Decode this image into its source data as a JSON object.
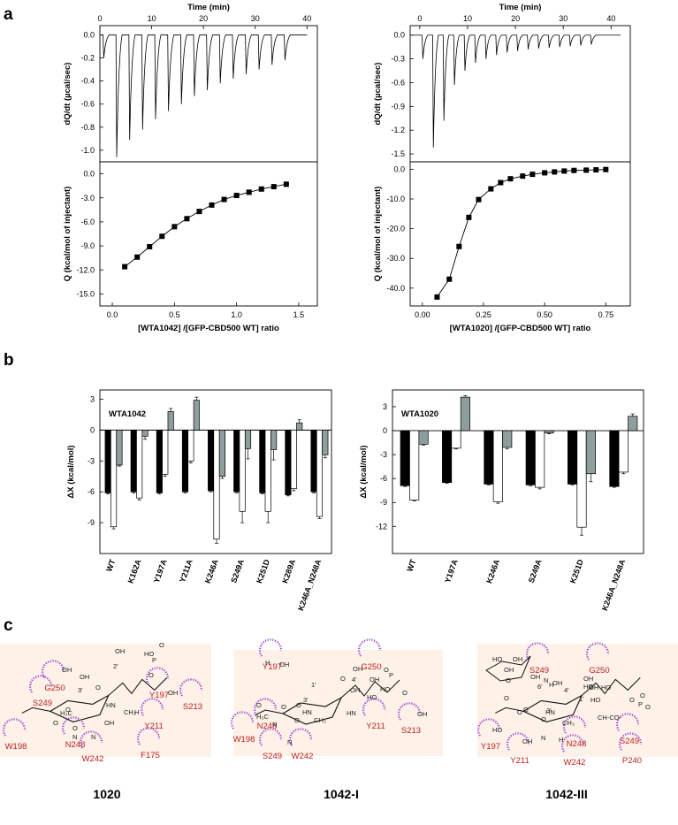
{
  "panels": {
    "a": "a",
    "b": "b",
    "c": "c"
  },
  "chart_data": [
    {
      "type": "line",
      "id": "a-left-top",
      "title": "",
      "x2label": "Time (min)",
      "ylabel": "dQ/dt  (µcal/sec)",
      "xlim": [
        0,
        42
      ],
      "ylim": [
        -1.1,
        0.08
      ],
      "xticks": [
        0,
        10,
        20,
        30,
        40
      ],
      "yticks": [
        0.0,
        -0.2,
        -0.4,
        -0.6,
        -0.8,
        -1.0
      ],
      "ytick_labels": [
        "0.0",
        "-0.2",
        "-0.4",
        "-0.6",
        "-0.8",
        "-1.0"
      ],
      "inject_times": [
        0.6,
        3.1,
        5.6,
        8.1,
        10.6,
        13.1,
        15.6,
        18.1,
        20.6,
        23.1,
        25.6,
        28.1,
        30.6,
        33.1,
        35.6
      ],
      "peaks": [
        -0.2,
        -1.06,
        -0.91,
        -0.82,
        -0.73,
        -0.66,
        -0.6,
        -0.53,
        -0.48,
        -0.42,
        -0.38,
        -0.34,
        -0.3,
        -0.26,
        -0.22
      ]
    },
    {
      "type": "scatter",
      "id": "a-left-bottom",
      "xlabel": "[WTA1042] /[GFP-CBD500 WT] ratio",
      "ylabel": "Q (kcal/mol of injectant)",
      "xlim": [
        -0.1,
        1.65
      ],
      "ylim": [
        -16.5,
        1.5
      ],
      "xticks": [
        0.0,
        0.5,
        1.0,
        1.5
      ],
      "xtick_labels": [
        "0.0",
        "0.5",
        "1.0",
        "1.5"
      ],
      "yticks": [
        0.0,
        -3.0,
        -6.0,
        -9.0,
        -12.0,
        -15.0
      ],
      "ytick_labels": [
        "0.0",
        "-3.0",
        "-6.0",
        "-9.0",
        "-12.0",
        "-15.0"
      ],
      "x": [
        0.1,
        0.2,
        0.3,
        0.4,
        0.5,
        0.6,
        0.7,
        0.8,
        0.9,
        1.0,
        1.1,
        1.2,
        1.3,
        1.4
      ],
      "y": [
        -11.6,
        -10.4,
        -9.1,
        -7.8,
        -6.6,
        -5.6,
        -4.7,
        -3.9,
        -3.2,
        -2.7,
        -2.3,
        -1.9,
        -1.6,
        -1.3
      ]
    },
    {
      "type": "line",
      "id": "a-right-top",
      "x2label": "Time (min)",
      "ylabel": "dQ/dt  (µcal/sec)",
      "xlim": [
        -2,
        44
      ],
      "ylim": [
        -1.6,
        0.12
      ],
      "xticks": [
        0,
        10,
        20,
        30,
        40
      ],
      "yticks": [
        0.0,
        -0.3,
        -0.6,
        -0.9,
        -1.2,
        -1.5
      ],
      "ytick_labels": [
        "0.0",
        "-0.3",
        "-0.6",
        "-0.9",
        "-1.2",
        "-1.5"
      ],
      "inject_times": [
        0.5,
        2.7,
        4.9,
        7.1,
        9.3,
        11.5,
        13.7,
        15.9,
        18.1,
        20.3,
        22.5,
        24.7,
        26.9,
        29.1,
        31.3,
        33.5,
        35.7
      ],
      "peaks": [
        -0.3,
        -1.42,
        -1.08,
        -0.63,
        -0.45,
        -0.35,
        -0.3,
        -0.25,
        -0.22,
        -0.2,
        -0.18,
        -0.17,
        -0.16,
        -0.15,
        -0.14,
        -0.13,
        -0.12
      ]
    },
    {
      "type": "scatter",
      "id": "a-right-bottom",
      "xlabel": "[WTA1020] /[GFP-CBD500 WT] ratio",
      "ylabel": "Q (kcal/mol of injectant)",
      "xlim": [
        -0.05,
        0.85
      ],
      "ylim": [
        -46,
        2.5
      ],
      "xticks": [
        0.0,
        0.25,
        0.5,
        0.75
      ],
      "xtick_labels": [
        "0.00",
        "0.25",
        "0.50",
        "0.75"
      ],
      "yticks": [
        0.0,
        -10.0,
        -20.0,
        -30.0,
        -40.0
      ],
      "ytick_labels": [
        "0.0",
        "-10.0",
        "-20.0",
        "-30.0",
        "-40.0"
      ],
      "x": [
        0.06,
        0.11,
        0.15,
        0.19,
        0.23,
        0.28,
        0.32,
        0.36,
        0.41,
        0.45,
        0.5,
        0.54,
        0.58,
        0.62,
        0.67,
        0.71,
        0.75
      ],
      "y": [
        -43.0,
        -37.0,
        -26.0,
        -16.2,
        -10.2,
        -6.6,
        -4.5,
        -3.2,
        -2.3,
        -1.7,
        -1.2,
        -0.9,
        -0.6,
        -0.4,
        -0.3,
        -0.2,
        -0.1
      ]
    },
    {
      "type": "bar",
      "id": "b-left",
      "annotation": "WTA1042",
      "ylabel": "ΔX (kcal/mol)",
      "ylim": [
        -12,
        3.9
      ],
      "yticks": [
        3,
        0,
        -3,
        -6,
        -9
      ],
      "ytick_labels": [
        "3",
        "0",
        "-3",
        "-6",
        "-9"
      ],
      "categories": [
        "WT",
        "K162A",
        "Y197A",
        "Y211A",
        "K246A",
        "S249A",
        "K251D",
        "K289A",
        "K246A_N248A"
      ],
      "series": [
        {
          "color": "#000000",
          "values": [
            -6.1,
            -6.0,
            -6.1,
            -6.0,
            -5.9,
            -6.0,
            -6.1,
            -6.3,
            -6.0
          ],
          "errors": [
            0.1,
            0.1,
            0.1,
            0.1,
            0.1,
            0.1,
            0.1,
            0.1,
            0.1
          ]
        },
        {
          "color": "#ffffff",
          "values": [
            -9.4,
            -6.6,
            -4.3,
            -3.0,
            -10.6,
            -7.9,
            -7.9,
            -5.7,
            -8.4
          ],
          "errors": [
            0.2,
            0.2,
            0.2,
            0.2,
            0.4,
            1.1,
            1.1,
            0.2,
            0.2
          ]
        },
        {
          "color": "#8e9e9c",
          "values": [
            -3.4,
            -0.6,
            1.8,
            2.9,
            -4.5,
            -1.8,
            -1.9,
            0.7,
            -2.4
          ],
          "errors": [
            0.1,
            0.3,
            0.3,
            0.3,
            0.2,
            1.0,
            1.0,
            0.3,
            0.3
          ]
        }
      ]
    },
    {
      "type": "bar",
      "id": "b-right",
      "annotation": "WTA1020",
      "ylabel": "ΔX (kcal/mol)",
      "ylim": [
        -15.4,
        5.1
      ],
      "yticks": [
        3,
        0,
        -3,
        -6,
        -9,
        -12
      ],
      "ytick_labels": [
        "3",
        "0",
        "-3",
        "-6",
        "-9",
        "-12"
      ],
      "categories": [
        "WT",
        "Y197A",
        "K246A",
        "S249A",
        "K251D",
        "K246A_N248A"
      ],
      "series": [
        {
          "color": "#000000",
          "values": [
            -6.9,
            -6.5,
            -6.7,
            -6.8,
            -6.7,
            -7.0
          ],
          "errors": [
            0.1,
            0.1,
            0.1,
            0.1,
            0.1,
            0.1
          ]
        },
        {
          "color": "#ffffff",
          "values": [
            -8.7,
            -2.2,
            -8.9,
            -7.1,
            -12.1,
            -5.2
          ],
          "errors": [
            0.1,
            0.1,
            0.2,
            0.2,
            1.0,
            0.2
          ]
        },
        {
          "color": "#8e9e9c",
          "values": [
            -1.7,
            4.2,
            -2.1,
            -0.3,
            -5.4,
            1.8
          ],
          "errors": [
            0.1,
            0.2,
            0.2,
            0.1,
            1.0,
            0.3
          ]
        }
      ]
    }
  ],
  "diagrams": [
    {
      "caption": "1020",
      "residues": [
        "G250",
        "S249",
        "Y197",
        "S213",
        "Y211",
        "W198",
        "N248",
        "W242",
        "F175"
      ],
      "chem_labels": [
        "OH",
        "OH",
        "HO",
        "O",
        "P",
        "2'",
        "3'",
        "HN",
        "H₃C",
        "O",
        "O",
        "O",
        "O",
        "CH₃",
        "OH",
        "OH",
        "OH",
        "O",
        "N",
        "N",
        "H"
      ]
    },
    {
      "caption": "1042-I",
      "residues": [
        "Y197",
        "G250",
        "W198",
        "N248",
        "S249",
        "W242",
        "Y211",
        "S213"
      ],
      "chem_labels": [
        "O",
        "O",
        "P",
        "HO",
        "O",
        "OH",
        "OH",
        "OH",
        "4'",
        "1'",
        "3'",
        "HN",
        "H₃C",
        "O",
        "O",
        "O",
        "O",
        "CH₃",
        "HN",
        "HO",
        "OH",
        "OH",
        "N",
        "N",
        "H"
      ]
    },
    {
      "caption": "1042-III",
      "residues": [
        "S249",
        "G250",
        "Y197",
        "Y211",
        "N248",
        "W242",
        "S249",
        "P240"
      ],
      "chem_labels": [
        "HO",
        "OH",
        "OH",
        "O",
        "OH",
        "OH",
        "HO",
        "HO",
        "HO",
        "6'",
        "4'",
        "1'",
        "3'",
        "HN",
        "O",
        "P",
        "O",
        "O",
        "OH",
        "OH",
        "O",
        "O",
        "O",
        "O",
        "CH₃",
        "CH-CO-",
        "HO",
        "OH",
        "N",
        "N",
        "H",
        "H"
      ]
    }
  ]
}
